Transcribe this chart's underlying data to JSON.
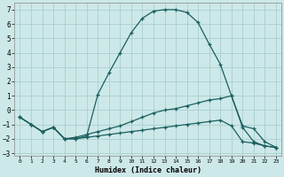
{
  "xlabel": "Humidex (Indice chaleur)",
  "x_values": [
    0,
    1,
    2,
    3,
    4,
    5,
    6,
    7,
    8,
    9,
    10,
    11,
    12,
    13,
    14,
    15,
    16,
    17,
    18,
    19,
    20,
    21,
    22,
    23
  ],
  "line1_y": [
    -0.5,
    -1.0,
    -1.5,
    -1.2,
    -2.0,
    -2.0,
    -1.9,
    -1.8,
    -1.7,
    -1.6,
    -1.5,
    -1.4,
    -1.3,
    -1.2,
    -1.1,
    -1.0,
    -0.9,
    -0.8,
    -0.7,
    -1.1,
    -2.2,
    -2.3,
    -2.5,
    -2.6
  ],
  "line2_y": [
    -0.5,
    -1.0,
    -1.5,
    -1.2,
    -2.0,
    -1.9,
    -1.7,
    -1.5,
    -1.3,
    -1.1,
    -0.8,
    -0.5,
    -0.2,
    0.0,
    0.1,
    0.3,
    0.5,
    0.7,
    0.8,
    1.0,
    -1.1,
    -1.3,
    -2.2,
    -2.6
  ],
  "line3_y": [
    -0.5,
    -1.0,
    -1.5,
    -1.2,
    -2.0,
    -2.0,
    -1.8,
    1.1,
    2.6,
    4.0,
    5.4,
    6.4,
    6.9,
    7.0,
    7.0,
    6.8,
    6.1,
    4.6,
    3.2,
    1.0,
    -1.2,
    -2.2,
    -2.5,
    -2.6
  ],
  "bg_color": "#cde8e8",
  "grid_color": "#aacece",
  "line_color": "#1a5f5f",
  "ylim": [
    -3.2,
    7.5
  ],
  "xlim": [
    -0.5,
    23.5
  ],
  "yticks": [
    -3,
    -2,
    -1,
    0,
    1,
    2,
    3,
    4,
    5,
    6,
    7
  ],
  "xticks": [
    0,
    1,
    2,
    3,
    4,
    5,
    6,
    7,
    8,
    9,
    10,
    11,
    12,
    13,
    14,
    15,
    16,
    17,
    18,
    19,
    20,
    21,
    22,
    23
  ]
}
